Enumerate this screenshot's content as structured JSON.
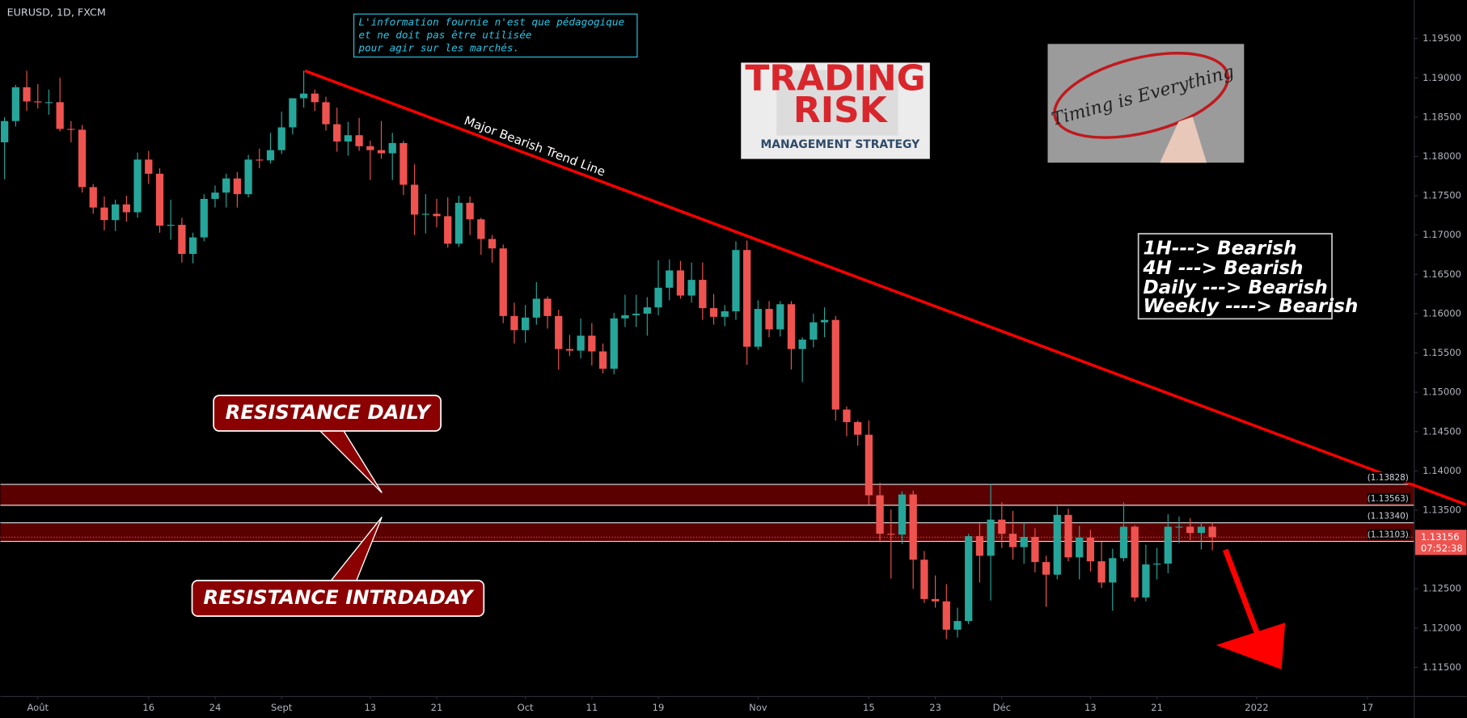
{
  "chart_data": {
    "type": "candlestick",
    "title": "EURUSD, 1D, FXCM",
    "up_color": "#26a69a",
    "down_color": "#ef5350",
    "x": [
      -3,
      -2,
      -1,
      0,
      1,
      2,
      3,
      4,
      5,
      6,
      7,
      8,
      9,
      10,
      11,
      12,
      13,
      14,
      15,
      16,
      17,
      18,
      19,
      20,
      21,
      22,
      23,
      24,
      25,
      26,
      27,
      28,
      29,
      30,
      31,
      32,
      33,
      34,
      35,
      36,
      37,
      38,
      39,
      40,
      41,
      42,
      43,
      44,
      45,
      46,
      47,
      48,
      49,
      50,
      51,
      52,
      53,
      54,
      55,
      56,
      57,
      58,
      59,
      60,
      61,
      62,
      63,
      64,
      65,
      66,
      67,
      68,
      69,
      70,
      71,
      72,
      73,
      74,
      75,
      76,
      77,
      78,
      79,
      80,
      81,
      82,
      83,
      84,
      85,
      86,
      87,
      88,
      89,
      90,
      91,
      92,
      93,
      94,
      95,
      96,
      97,
      98,
      99,
      100,
      101,
      102,
      103,
      104,
      105,
      106
    ],
    "open": [
      1.1818,
      1.1845,
      1.1888,
      1.187,
      1.1869,
      1.1869,
      1.1835,
      1.1834,
      1.1761,
      1.1735,
      1.1719,
      1.1739,
      1.1729,
      1.1796,
      1.1778,
      1.1712,
      1.1713,
      1.1676,
      1.1697,
      1.1746,
      1.1754,
      1.1772,
      1.1752,
      1.1796,
      1.1795,
      1.1808,
      1.1837,
      1.1874,
      1.188,
      1.1869,
      1.1841,
      1.1819,
      1.1827,
      1.1813,
      1.1808,
      1.1804,
      1.1817,
      1.1764,
      1.1726,
      1.1727,
      1.1724,
      1.1689,
      1.1741,
      1.172,
      1.1695,
      1.1683,
      1.1597,
      1.1579,
      1.1595,
      1.1619,
      1.1597,
      1.1555,
      1.1553,
      1.1572,
      1.1552,
      1.153,
      1.1594,
      1.1598,
      1.16,
      1.1608,
      1.1633,
      1.1655,
      1.1623,
      1.1643,
      1.1607,
      1.1596,
      1.1603,
      1.1681,
      1.1558,
      1.1606,
      1.158,
      1.1612,
      1.1555,
      1.1567,
      1.1589,
      1.1592,
      1.1478,
      1.1462,
      1.1446,
      1.1369,
      1.132,
      1.1319,
      1.137,
      1.1287,
      1.1237,
      1.1234,
      1.1198,
      1.1209,
      1.1317,
      1.1292,
      1.1338,
      1.132,
      1.1303,
      1.1316,
      1.1284,
      1.1268,
      1.1344,
      1.129,
      1.1315,
      1.1285,
      1.1258,
      1.1289,
      1.1329,
      1.1239,
      1.1281,
      1.1282,
      1.1329,
      1.1329,
      1.1321,
      1.1329
    ],
    "high": [
      1.185,
      1.1891,
      1.1909,
      1.1892,
      1.1885,
      1.19,
      1.1845,
      1.184,
      1.1765,
      1.1749,
      1.1745,
      1.175,
      1.1805,
      1.1807,
      1.1785,
      1.1745,
      1.1722,
      1.1703,
      1.1752,
      1.1763,
      1.1778,
      1.178,
      1.1802,
      1.181,
      1.183,
      1.1857,
      1.1874,
      1.1909,
      1.1885,
      1.1876,
      1.1862,
      1.1844,
      1.1849,
      1.182,
      1.1845,
      1.183,
      1.182,
      1.179,
      1.1752,
      1.1746,
      1.1748,
      1.175,
      1.1749,
      1.1722,
      1.17,
      1.1688,
      1.1614,
      1.1611,
      1.164,
      1.1622,
      1.1605,
      1.1573,
      1.1594,
      1.1588,
      1.1562,
      1.1601,
      1.1624,
      1.1624,
      1.1621,
      1.1668,
      1.1669,
      1.1667,
      1.1665,
      1.1665,
      1.1625,
      1.1611,
      1.1692,
      1.1693,
      1.1617,
      1.1616,
      1.1616,
      1.1616,
      1.157,
      1.16,
      1.1608,
      1.1597,
      1.1482,
      1.1464,
      1.1464,
      1.1385,
      1.1351,
      1.1374,
      1.1375,
      1.1298,
      1.1267,
      1.1256,
      1.1226,
      1.132,
      1.1333,
      1.1383,
      1.136,
      1.1349,
      1.1334,
      1.1327,
      1.1292,
      1.1355,
      1.1352,
      1.133,
      1.1325,
      1.131,
      1.1301,
      1.136,
      1.1331,
      1.1306,
      1.1302,
      1.1345,
      1.1342,
      1.134,
      1.1335,
      1.1334
    ],
    "low": [
      1.1771,
      1.1838,
      1.1858,
      1.1861,
      1.1853,
      1.1832,
      1.1818,
      1.1754,
      1.1727,
      1.1706,
      1.1705,
      1.1717,
      1.1722,
      1.1765,
      1.1703,
      1.1694,
      1.1665,
      1.1664,
      1.1692,
      1.1735,
      1.1735,
      1.1735,
      1.1748,
      1.1785,
      1.1791,
      1.1803,
      1.1828,
      1.1862,
      1.1858,
      1.1833,
      1.1806,
      1.1801,
      1.1807,
      1.177,
      1.1797,
      1.177,
      1.1751,
      1.17,
      1.1702,
      1.171,
      1.1684,
      1.1685,
      1.17,
      1.1675,
      1.1665,
      1.1588,
      1.1562,
      1.1563,
      1.1586,
      1.1581,
      1.1529,
      1.1546,
      1.1543,
      1.1534,
      1.1524,
      1.1523,
      1.1583,
      1.1583,
      1.1572,
      1.1598,
      1.1617,
      1.1619,
      1.1614,
      1.1592,
      1.1586,
      1.1584,
      1.1592,
      1.1535,
      1.1554,
      1.157,
      1.1571,
      1.1529,
      1.1513,
      1.1557,
      1.157,
      1.1464,
      1.1444,
      1.1432,
      1.1357,
      1.1309,
      1.1263,
      1.1307,
      1.125,
      1.1232,
      1.1226,
      1.1186,
      1.1188,
      1.1205,
      1.1258,
      1.1235,
      1.1302,
      1.1287,
      1.1282,
      1.1271,
      1.1227,
      1.1262,
      1.1285,
      1.1262,
      1.1272,
      1.1251,
      1.1222,
      1.1285,
      1.1234,
      1.1234,
      1.1262,
      1.127,
      1.1308,
      1.1312,
      1.13,
      1.1299
    ],
    "close": [
      1.1845,
      1.1888,
      1.187,
      1.1869,
      1.1869,
      1.1835,
      1.1834,
      1.1761,
      1.1735,
      1.1719,
      1.1739,
      1.1729,
      1.1796,
      1.1778,
      1.1712,
      1.1713,
      1.1676,
      1.1697,
      1.1746,
      1.1754,
      1.1772,
      1.1752,
      1.1796,
      1.1795,
      1.1808,
      1.1837,
      1.1874,
      1.188,
      1.1869,
      1.1841,
      1.1819,
      1.1827,
      1.1813,
      1.1808,
      1.1804,
      1.1817,
      1.1764,
      1.1726,
      1.1727,
      1.1724,
      1.1689,
      1.1741,
      1.172,
      1.1695,
      1.1683,
      1.1597,
      1.1579,
      1.1595,
      1.1619,
      1.1597,
      1.1555,
      1.1553,
      1.1572,
      1.1552,
      1.153,
      1.1594,
      1.1598,
      1.16,
      1.1608,
      1.1633,
      1.1655,
      1.1623,
      1.1643,
      1.1607,
      1.1596,
      1.1603,
      1.1681,
      1.1558,
      1.1606,
      1.158,
      1.1612,
      1.1555,
      1.1567,
      1.1589,
      1.1592,
      1.1478,
      1.1462,
      1.1446,
      1.1369,
      1.132,
      1.1319,
      1.137,
      1.1287,
      1.1237,
      1.1234,
      1.1198,
      1.1209,
      1.1317,
      1.1292,
      1.1338,
      1.132,
      1.1303,
      1.1316,
      1.1284,
      1.1268,
      1.1344,
      1.129,
      1.1315,
      1.1285,
      1.1258,
      1.1289,
      1.1329,
      1.1239,
      1.1281,
      1.1282,
      1.1329,
      1.1329,
      1.1321,
      1.1329,
      1.13156
    ],
    "xlim": [
      -3.376,
      124.22
    ],
    "xticks": [
      {
        "value": 0,
        "label": "Août"
      },
      {
        "value": 10,
        "label": "16"
      },
      {
        "value": 16,
        "label": "24"
      },
      {
        "value": 22,
        "label": "Sept"
      },
      {
        "value": 30,
        "label": "13"
      },
      {
        "value": 36,
        "label": "21"
      },
      {
        "value": 44,
        "label": "Oct"
      },
      {
        "value": 50,
        "label": "11"
      },
      {
        "value": 56,
        "label": "19"
      },
      {
        "value": 65,
        "label": "Nov"
      },
      {
        "value": 75,
        "label": "15"
      },
      {
        "value": 81,
        "label": "23"
      },
      {
        "value": 87,
        "label": "Déc"
      },
      {
        "value": 95,
        "label": "13"
      },
      {
        "value": 101,
        "label": "21"
      },
      {
        "value": 110,
        "label": "2022"
      },
      {
        "value": 120,
        "label": "17"
      }
    ],
    "ylim": [
      1.1113,
      1.1999
    ],
    "yticks": [
      {
        "value": 1.115,
        "label": "1.11500"
      },
      {
        "value": 1.12,
        "label": "1.12000"
      },
      {
        "value": 1.125,
        "label": "1.12500"
      },
      {
        "value": 1.13,
        "label": "1.13000"
      },
      {
        "value": 1.135,
        "label": "1.13500"
      },
      {
        "value": 1.14,
        "label": "1.14000"
      },
      {
        "value": 1.145,
        "label": "1.14500"
      },
      {
        "value": 1.15,
        "label": "1.15000"
      },
      {
        "value": 1.155,
        "label": "1.15500"
      },
      {
        "value": 1.16,
        "label": "1.16000"
      },
      {
        "value": 1.165,
        "label": "1.16500"
      },
      {
        "value": 1.17,
        "label": "1.17000"
      },
      {
        "value": 1.175,
        "label": "1.17500"
      },
      {
        "value": 1.18,
        "label": "1.18000"
      },
      {
        "value": 1.185,
        "label": "1.18500"
      },
      {
        "value": 1.19,
        "label": "1.19000"
      },
      {
        "value": 1.195,
        "label": "1.19500"
      }
    ],
    "grid": false,
    "last_price": 1.13156,
    "countdown": "07:52:38",
    "zones": [
      {
        "name": "RESISTANCE DAILY",
        "top": {
          "value": 1.13828,
          "label": "(1.13828)"
        },
        "bottom": {
          "value": 1.13563,
          "label": "(1.13563)"
        }
      },
      {
        "name": "RESISTANCE INTRDADAY",
        "top": {
          "value": 1.1334,
          "label": "(1.13340)"
        },
        "bottom": {
          "value": 1.13103,
          "label": "(1.13103)"
        }
      }
    ],
    "trend_line": {
      "label": "Major Bearish Trend Line",
      "color": "#ff0000",
      "x": [
        24.1,
        128.9
      ],
      "y": [
        1.1909,
        1.1357
      ]
    }
  },
  "disclaimer": [
    "L'information fournie n'est que pédagogique",
    "et ne doit pas être utilisée",
    "pour agir sur les marchés."
  ],
  "image_trading_risk": {
    "line1": "TRADING",
    "line2": "RISK",
    "line3": "MANAGEMENT STRATEGY"
  },
  "image_timing": "Timing is Everything",
  "timeframes": [
    "1H---> Bearish",
    "4H ---> Bearish",
    "Daily ---> Bearish",
    "Weekly ----> Bearish"
  ]
}
